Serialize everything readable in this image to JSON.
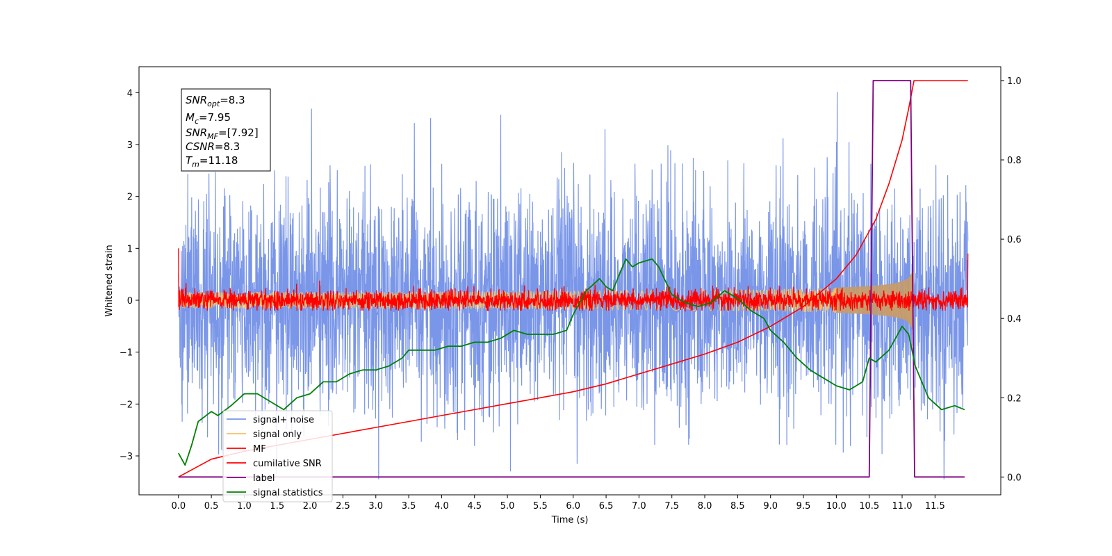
{
  "chart_data": {
    "type": "line",
    "xlabel": "Time (s)",
    "ylabel": "Whitened strain",
    "xlim": [
      -0.6,
      12.5
    ],
    "ylim": [
      -3.75,
      4.5
    ],
    "y2lim": [
      -0.045,
      1.035
    ],
    "xticks": [
      "0.0",
      "0.5",
      "1.0",
      "1.5",
      "2.0",
      "2.5",
      "3.0",
      "3.5",
      "4.0",
      "4.5",
      "5.0",
      "5.5",
      "6.0",
      "6.5",
      "7.0",
      "7.5",
      "8.0",
      "8.5",
      "9.0",
      "9.5",
      "10.0",
      "10.5",
      "11.0",
      "11.5"
    ],
    "yticks": [
      "4",
      "3",
      "2",
      "1",
      "0",
      "−1",
      "−2",
      "−3"
    ],
    "y2ticks": [
      "1.0",
      "0.8",
      "0.6",
      "0.4",
      "0.2",
      "0.0"
    ],
    "legend_placement": "lower-left",
    "grid": false,
    "colors": {
      "signal_noise": "#7a96e8",
      "signal_only": "#f5c065",
      "mf": "#ff0000",
      "cumulative_snr": "#ff0000",
      "label": "#800080",
      "signal_statistics": "#008000"
    },
    "annotation": {
      "snr_opt": {
        "base": "SNR",
        "sub": "opt",
        "value": "=8.3"
      },
      "mc": {
        "base": "M",
        "sub": "c",
        "value": "=7.95"
      },
      "snr_mf": {
        "base": "SNR",
        "sub": "MF",
        "value": "=[7.92]"
      },
      "csnr": {
        "base": "CSNR",
        "value": "=8.3"
      },
      "tm": {
        "base": "T",
        "sub": "m",
        "value": "=11.18"
      }
    },
    "series": [
      {
        "name": "signal+ noise",
        "axis": "left",
        "style": "noise",
        "x_range": [
          0.0,
          12.0
        ],
        "std": 1.0,
        "peak_max": 4.17,
        "peak_min": -3.45
      },
      {
        "name": "signal only",
        "axis": "left",
        "style": "chirp",
        "x_range": [
          0.0,
          11.18
        ],
        "amplitude_at_merger": 0.5
      },
      {
        "name": "MF",
        "axis": "left",
        "style": "noise",
        "x_range": [
          0.0,
          12.0
        ],
        "std": 0.1,
        "start_value": 1.0,
        "end_value": 0.9
      },
      {
        "name": "cumilative SNR",
        "axis": "right",
        "x": [
          0.0,
          0.5,
          1.0,
          1.5,
          2.0,
          2.5,
          3.0,
          3.5,
          4.0,
          4.5,
          5.0,
          5.5,
          6.0,
          6.5,
          7.0,
          7.5,
          8.0,
          8.5,
          9.0,
          9.5,
          10.0,
          10.3,
          10.6,
          10.8,
          11.0,
          11.1,
          11.18,
          11.3,
          12.0
        ],
        "values": [
          0.0,
          0.045,
          0.065,
          0.08,
          0.095,
          0.11,
          0.125,
          0.14,
          0.155,
          0.17,
          0.185,
          0.2,
          0.215,
          0.235,
          0.26,
          0.285,
          0.31,
          0.34,
          0.38,
          0.43,
          0.5,
          0.56,
          0.65,
          0.74,
          0.85,
          0.93,
          1.0,
          1.0,
          1.0
        ]
      },
      {
        "name": "label",
        "axis": "right",
        "x": [
          0.0,
          10.5,
          10.56,
          11.13,
          11.19,
          11.95
        ],
        "values": [
          0.0,
          0.0,
          1.0,
          1.0,
          0.0,
          0.0
        ]
      },
      {
        "name": "signal statistics",
        "axis": "right",
        "x": [
          0.0,
          0.1,
          0.2,
          0.3,
          0.5,
          0.6,
          0.8,
          1.0,
          1.2,
          1.4,
          1.6,
          1.8,
          2.0,
          2.2,
          2.4,
          2.6,
          2.8,
          3.0,
          3.2,
          3.4,
          3.5,
          3.7,
          3.9,
          4.1,
          4.3,
          4.5,
          4.7,
          4.9,
          5.1,
          5.3,
          5.5,
          5.7,
          5.9,
          6.0,
          6.2,
          6.4,
          6.5,
          6.6,
          6.8,
          6.9,
          7.0,
          7.2,
          7.3,
          7.5,
          7.7,
          7.9,
          8.1,
          8.3,
          8.5,
          8.7,
          8.9,
          9.0,
          9.2,
          9.4,
          9.6,
          9.8,
          10.0,
          10.2,
          10.4,
          10.5,
          10.6,
          10.8,
          11.0,
          11.1,
          11.2,
          11.4,
          11.6,
          11.8,
          11.95
        ],
        "values": [
          0.06,
          0.03,
          0.08,
          0.14,
          0.165,
          0.155,
          0.18,
          0.21,
          0.21,
          0.19,
          0.17,
          0.2,
          0.21,
          0.24,
          0.24,
          0.26,
          0.27,
          0.27,
          0.28,
          0.3,
          0.32,
          0.32,
          0.32,
          0.33,
          0.33,
          0.34,
          0.34,
          0.35,
          0.37,
          0.36,
          0.36,
          0.36,
          0.37,
          0.41,
          0.47,
          0.5,
          0.48,
          0.47,
          0.55,
          0.53,
          0.54,
          0.55,
          0.53,
          0.46,
          0.44,
          0.43,
          0.44,
          0.47,
          0.45,
          0.42,
          0.4,
          0.37,
          0.34,
          0.3,
          0.27,
          0.25,
          0.23,
          0.22,
          0.24,
          0.3,
          0.29,
          0.32,
          0.38,
          0.36,
          0.28,
          0.2,
          0.17,
          0.18,
          0.17
        ]
      }
    ]
  }
}
